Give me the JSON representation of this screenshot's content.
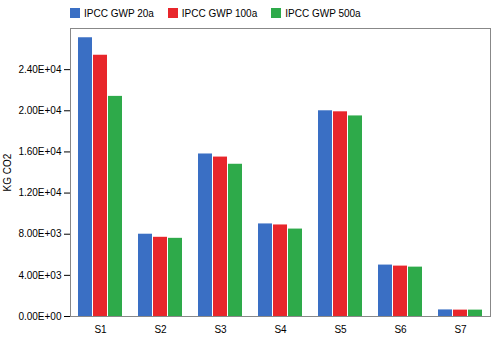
{
  "chart_data": {
    "type": "bar",
    "y_label": "KG CO2",
    "categories": [
      "S1",
      "S2",
      "S3",
      "S4",
      "S5",
      "S6",
      "S7"
    ],
    "series": [
      {
        "name": "IPCC GWP 20a",
        "color": "#3a6fc4",
        "values": [
          27100,
          8000,
          15800,
          9000,
          20000,
          5000,
          640
        ]
      },
      {
        "name": "IPCC GWP 100a",
        "color": "#e8262b",
        "values": [
          25400,
          7700,
          15500,
          8900,
          19900,
          4900,
          620
        ]
      },
      {
        "name": "IPCC GWP 500a",
        "color": "#2eaa4a",
        "values": [
          21400,
          7600,
          14800,
          8500,
          19500,
          4800,
          620
        ]
      }
    ],
    "ylim": [
      0,
      28000
    ],
    "yticks": [
      {
        "value": 0,
        "label": "0.00E+00"
      },
      {
        "value": 4000,
        "label": "4.00E+03"
      },
      {
        "value": 8000,
        "label": "8.00E+03"
      },
      {
        "value": 12000,
        "label": "1.20E+04"
      },
      {
        "value": 16000,
        "label": "1.60E+04"
      },
      {
        "value": 20000,
        "label": "2.00E+04"
      },
      {
        "value": 24000,
        "label": "2.40E+04"
      }
    ],
    "grid": false,
    "legend": "top"
  }
}
